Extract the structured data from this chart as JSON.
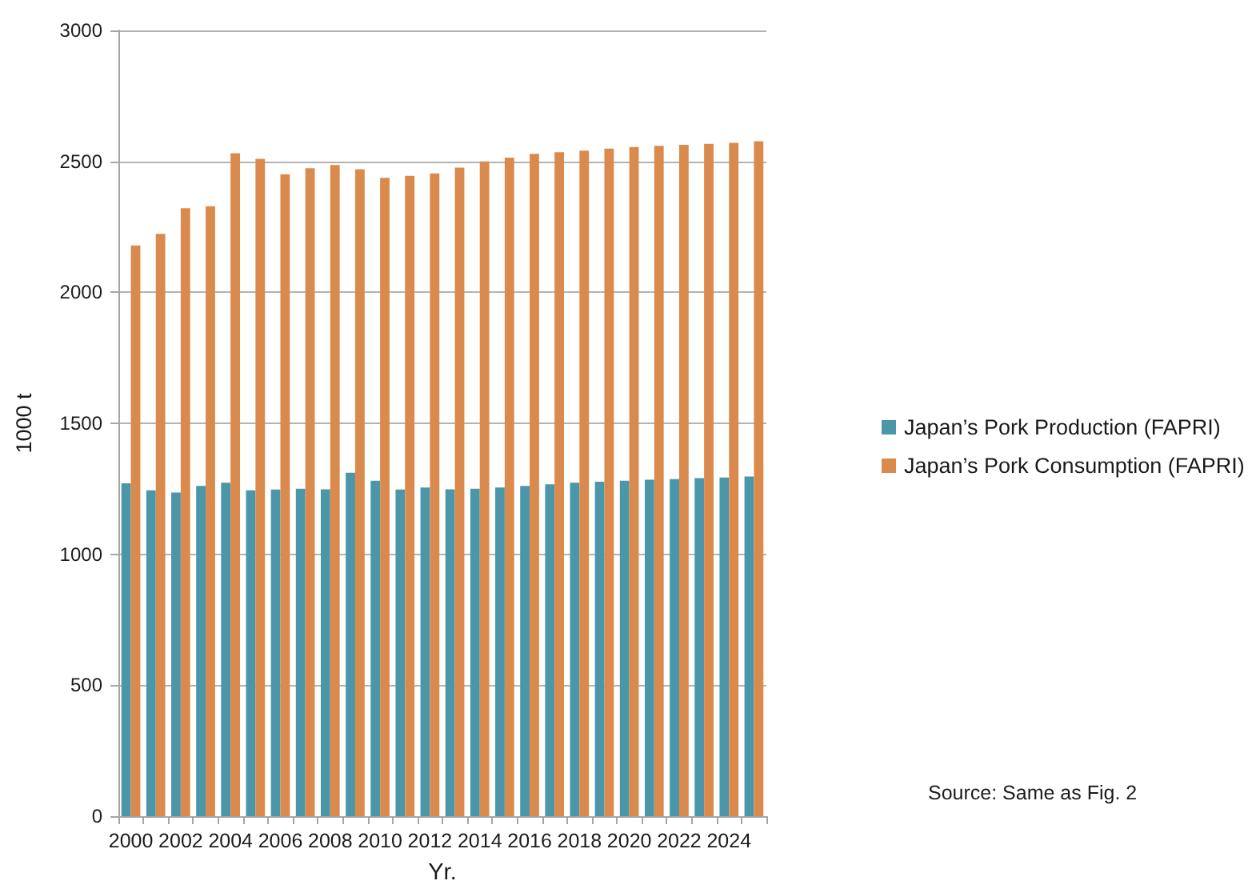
{
  "chart_data": {
    "type": "bar",
    "categories": [
      "2000",
      null,
      "2002",
      null,
      "2004",
      null,
      "2006",
      null,
      "2008",
      null,
      "2010",
      null,
      "2012",
      null,
      "2014",
      null,
      "2016",
      null,
      "2018",
      null,
      "2020",
      null,
      "2022",
      null,
      "2024",
      null
    ],
    "series": [
      {
        "name": "Japan’s Pork Production (FAPRI)",
        "color": "#4b97a9",
        "values": [
          1271,
          1244,
          1236,
          1261,
          1273,
          1244,
          1247,
          1250,
          1248,
          1311,
          1281,
          1247,
          1255,
          1248,
          1250,
          1255,
          1261,
          1267,
          1273,
          1277,
          1281,
          1285,
          1287,
          1291,
          1293,
          1297
        ]
      },
      {
        "name": "Japan’s Pork Consumption (FAPRI)",
        "color": "#da8a4c",
        "values": [
          2179,
          2223,
          2321,
          2329,
          2531,
          2510,
          2451,
          2474,
          2486,
          2470,
          2437,
          2445,
          2454,
          2476,
          2500,
          2514,
          2529,
          2535,
          2541,
          2549,
          2555,
          2559,
          2563,
          2567,
          2571,
          2577
        ]
      }
    ],
    "xlabel": "Yr.",
    "ylabel": "1000 t",
    "ylim": [
      0,
      3000
    ],
    "yticks": [
      0,
      500,
      1000,
      1500,
      2000,
      2500,
      3000
    ],
    "grid": "y",
    "legend": "right",
    "annotations": [
      "Source: Same as Fig. 2"
    ]
  }
}
